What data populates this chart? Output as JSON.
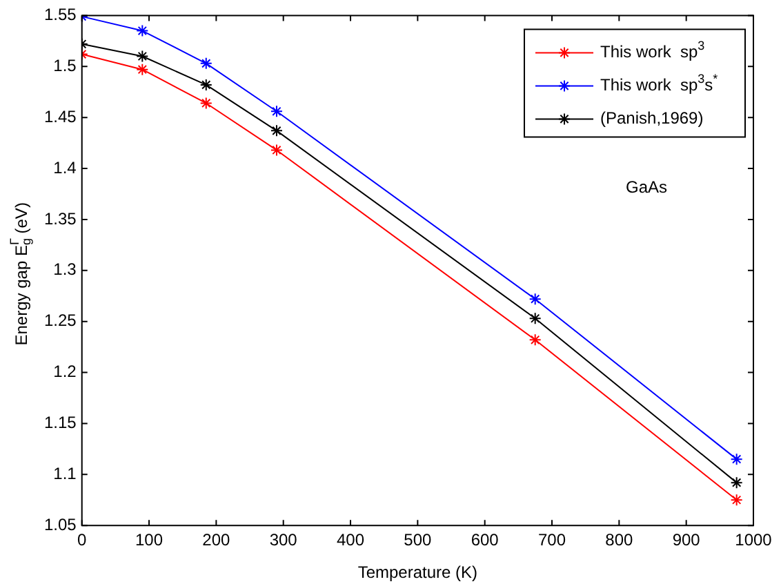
{
  "chart_data": {
    "type": "line",
    "xlabel": "Temperature (K)",
    "ylabel": "Energy gap E$_{g}$$^{Γ}$ (eV)",
    "x": [
      0,
      90,
      185,
      290,
      675,
      975
    ],
    "series": [
      {
        "name": "This work  sp$^{3}$",
        "color": "#ff0000",
        "values": [
          1.512,
          1.497,
          1.464,
          1.418,
          1.232,
          1.075
        ]
      },
      {
        "name": "This work  sp$^{3}$s$^{*}$",
        "color": "#0000ff",
        "values": [
          1.549,
          1.535,
          1.503,
          1.456,
          1.272,
          1.115
        ]
      },
      {
        "name": "(Panish,1969)",
        "color": "#000000",
        "values": [
          1.522,
          1.51,
          1.482,
          1.437,
          1.253,
          1.092
        ]
      }
    ],
    "xlim": [
      0,
      1000
    ],
    "xticks": [
      0,
      100,
      200,
      300,
      400,
      500,
      600,
      700,
      800,
      900,
      1000
    ],
    "ylim": [
      1.05,
      1.55
    ],
    "yticks": [
      1.05,
      1.1,
      1.15,
      1.2,
      1.25,
      1.3,
      1.35,
      1.4,
      1.45,
      1.5,
      1.55
    ],
    "annotations": [
      "GaAs"
    ],
    "legend": "top right",
    "marker": "cross",
    "line_style": "solid",
    "grid": false
  }
}
